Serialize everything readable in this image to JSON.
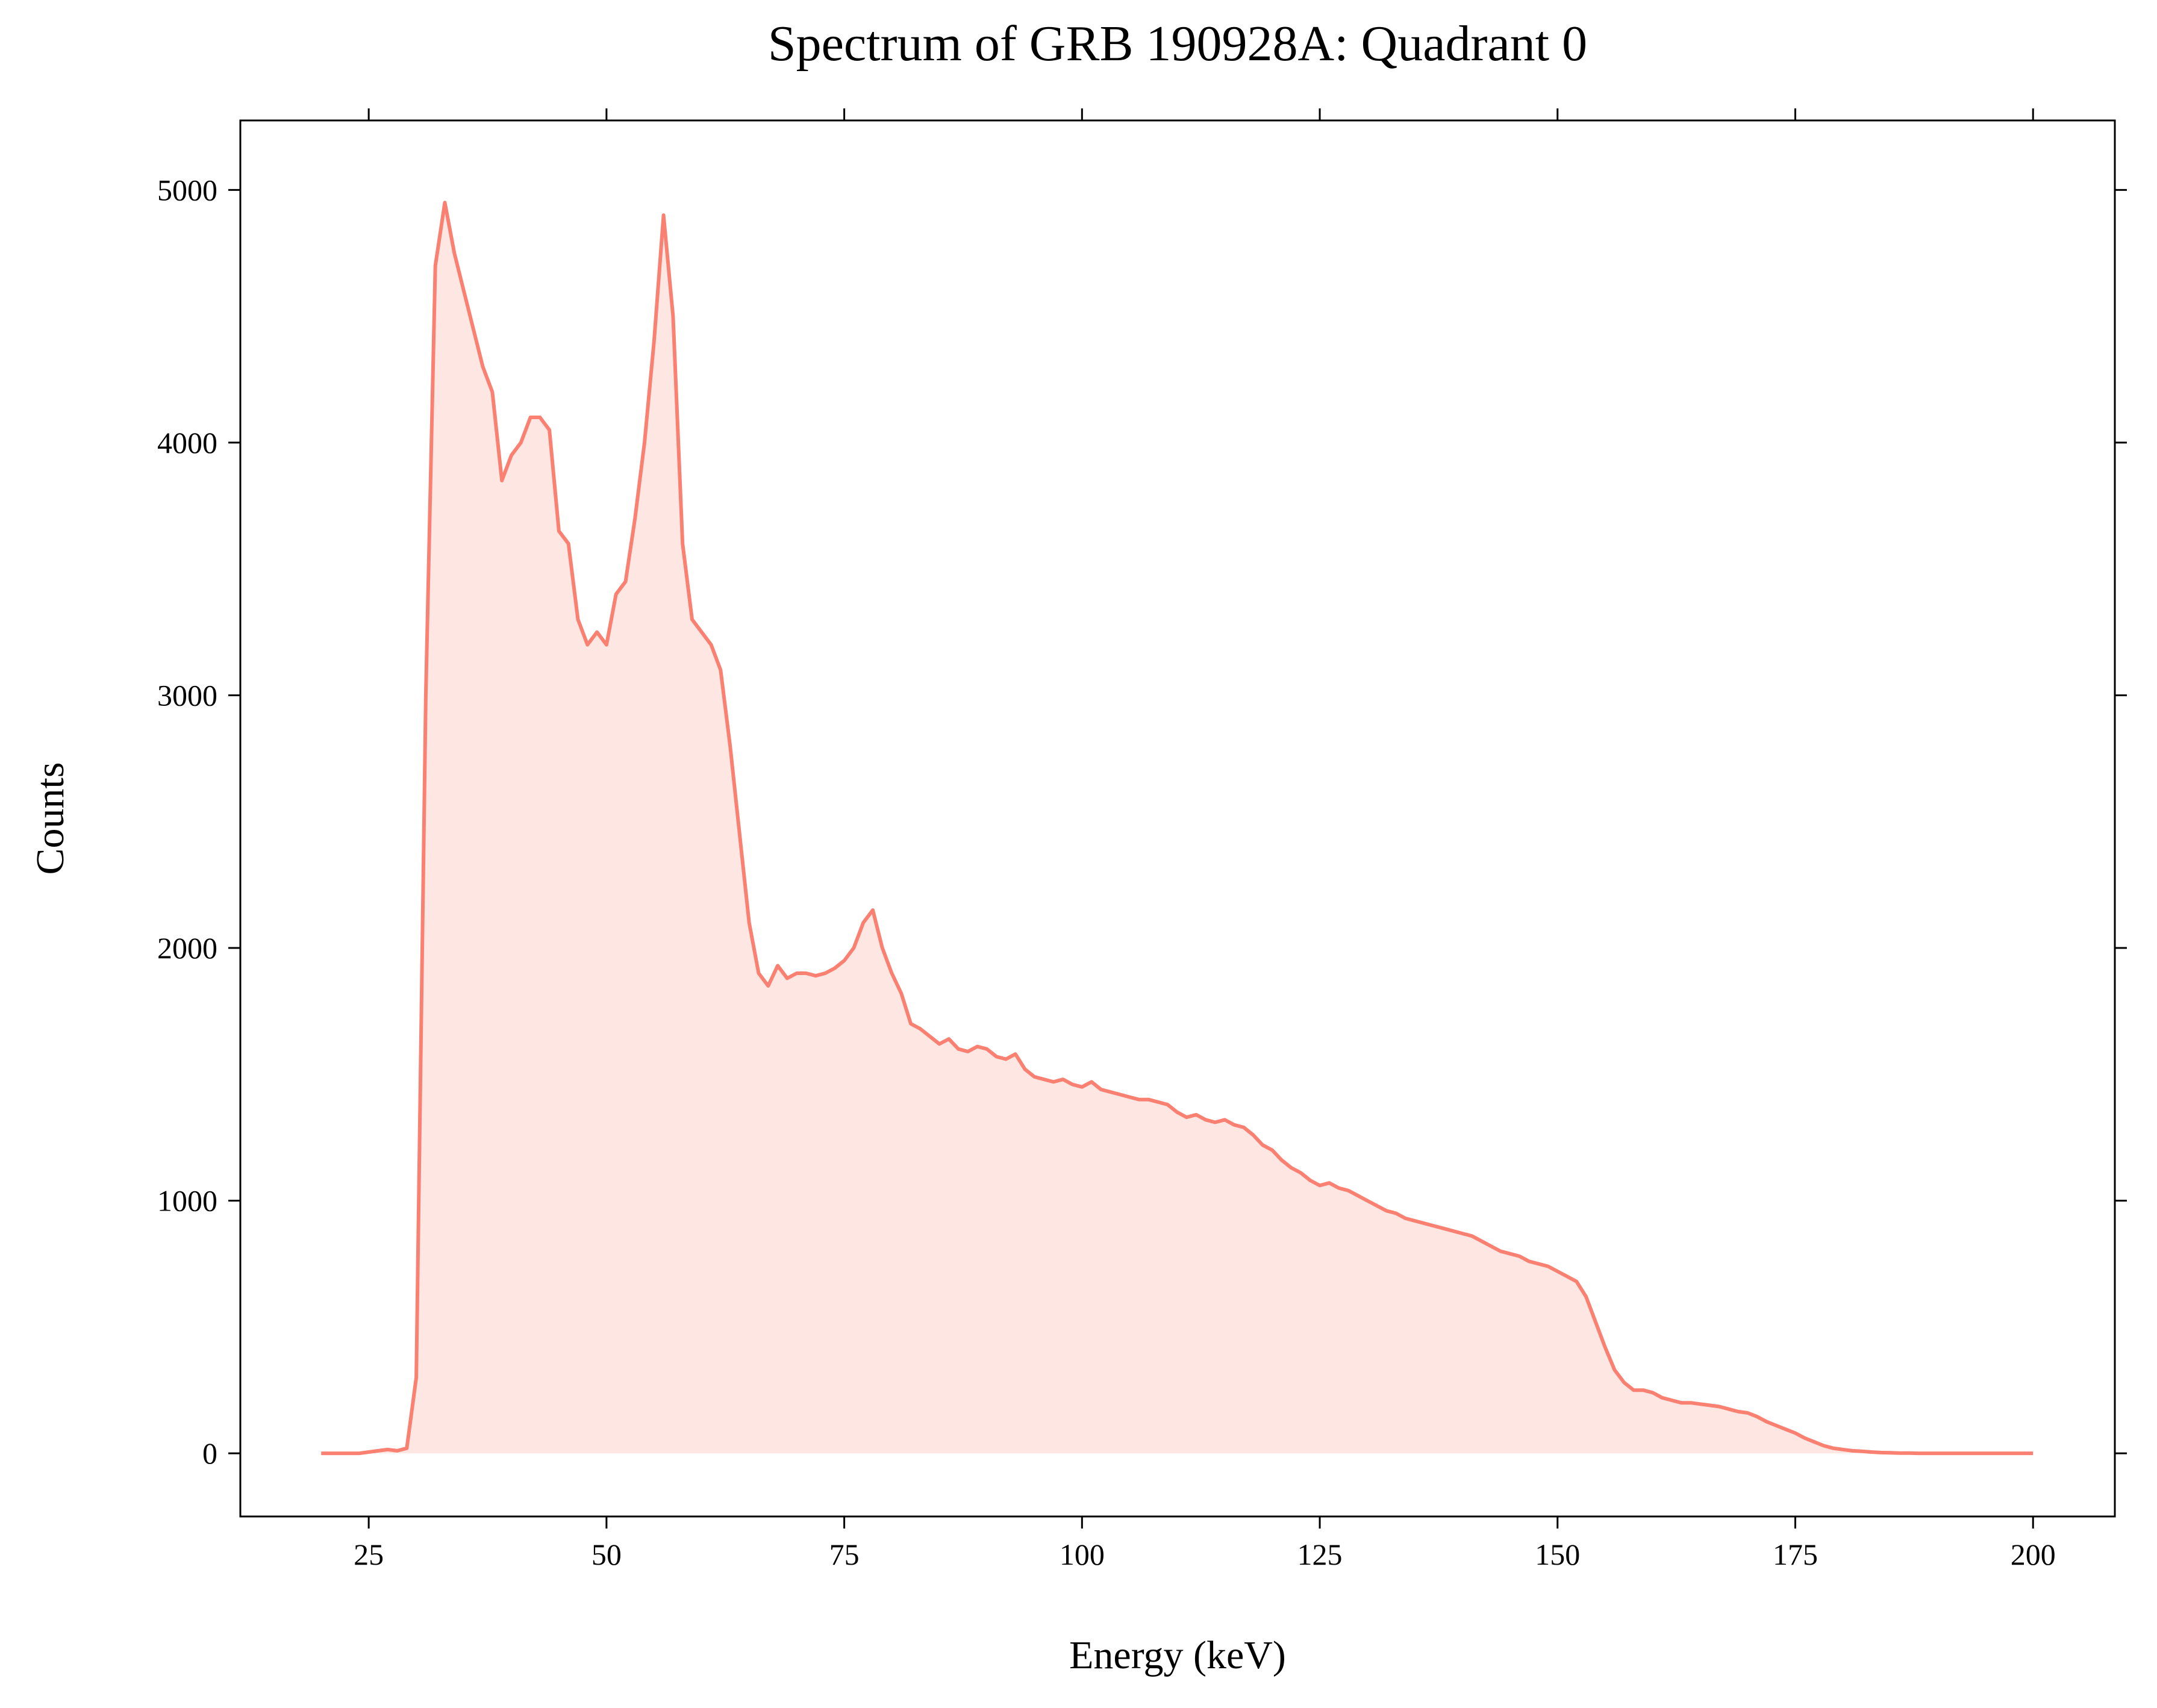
{
  "chart_data": {
    "type": "area-line",
    "title": "Spectrum of GRB 190928A: Quadrant 0",
    "xlabel": "Energy (keV)",
    "ylabel": "Counts",
    "x": [
      20,
      21,
      22,
      23,
      24,
      25,
      26,
      27,
      28,
      29,
      30,
      31,
      32,
      33,
      34,
      35,
      36,
      37,
      38,
      39,
      40,
      41,
      42,
      43,
      44,
      45,
      46,
      47,
      48,
      49,
      50,
      51,
      52,
      53,
      54,
      55,
      56,
      57,
      58,
      59,
      60,
      61,
      62,
      63,
      64,
      65,
      66,
      67,
      68,
      69,
      70,
      71,
      72,
      73,
      74,
      75,
      76,
      77,
      78,
      79,
      80,
      81,
      82,
      83,
      84,
      85,
      86,
      87,
      88,
      89,
      90,
      91,
      92,
      93,
      94,
      95,
      96,
      97,
      98,
      99,
      100,
      101,
      102,
      103,
      104,
      105,
      106,
      107,
      108,
      109,
      110,
      111,
      112,
      113,
      114,
      115,
      116,
      117,
      118,
      119,
      120,
      121,
      122,
      123,
      124,
      125,
      126,
      127,
      128,
      129,
      130,
      131,
      132,
      133,
      134,
      135,
      136,
      137,
      138,
      139,
      140,
      141,
      142,
      143,
      144,
      145,
      146,
      147,
      148,
      149,
      150,
      151,
      152,
      153,
      154,
      155,
      156,
      157,
      158,
      159,
      160,
      161,
      162,
      163,
      164,
      165,
      166,
      167,
      168,
      169,
      170,
      171,
      172,
      173,
      174,
      175,
      176,
      177,
      178,
      179,
      180,
      181,
      182,
      183,
      184,
      185,
      186,
      187,
      188,
      189,
      190,
      191,
      192,
      193,
      194,
      195,
      196,
      197,
      198,
      199,
      200
    ],
    "values": [
      0,
      0,
      0,
      0,
      0,
      5,
      10,
      15,
      10,
      20,
      300,
      3000,
      4700,
      4950,
      4750,
      4600,
      4450,
      4300,
      4200,
      3850,
      3950,
      4000,
      4100,
      4100,
      4050,
      3650,
      3600,
      3300,
      3200,
      3250,
      3200,
      3400,
      3450,
      3700,
      4000,
      4400,
      4900,
      4500,
      3600,
      3300,
      3250,
      3200,
      3100,
      2800,
      2450,
      2100,
      1900,
      1850,
      1930,
      1880,
      1900,
      1900,
      1890,
      1900,
      1920,
      1950,
      2000,
      2100,
      2150,
      2000,
      1900,
      1820,
      1700,
      1680,
      1650,
      1620,
      1640,
      1600,
      1590,
      1610,
      1600,
      1570,
      1560,
      1580,
      1520,
      1490,
      1480,
      1470,
      1480,
      1460,
      1450,
      1470,
      1440,
      1430,
      1420,
      1410,
      1400,
      1400,
      1390,
      1380,
      1350,
      1330,
      1340,
      1320,
      1310,
      1320,
      1300,
      1290,
      1260,
      1220,
      1200,
      1160,
      1130,
      1110,
      1080,
      1060,
      1070,
      1050,
      1040,
      1020,
      1000,
      980,
      960,
      950,
      930,
      920,
      910,
      900,
      890,
      880,
      870,
      860,
      840,
      820,
      800,
      790,
      780,
      760,
      750,
      740,
      720,
      700,
      680,
      620,
      520,
      420,
      330,
      280,
      250,
      250,
      240,
      220,
      210,
      200,
      200,
      195,
      190,
      185,
      175,
      165,
      160,
      145,
      125,
      110,
      95,
      80,
      60,
      45,
      30,
      20,
      15,
      10,
      8,
      5,
      3,
      2,
      1,
      1,
      0,
      0,
      0,
      0,
      0,
      0,
      0,
      0,
      0,
      0,
      0,
      0,
      0
    ],
    "color": "#fa8072",
    "fill_opacity": 0.2,
    "xlim": [
      11.5,
      208.6
    ],
    "ylim": [
      -250,
      5275
    ],
    "xticks": [
      25,
      50,
      75,
      100,
      125,
      150,
      175,
      200
    ],
    "yticks": [
      0,
      1000,
      2000,
      3000,
      4000,
      5000
    ]
  }
}
